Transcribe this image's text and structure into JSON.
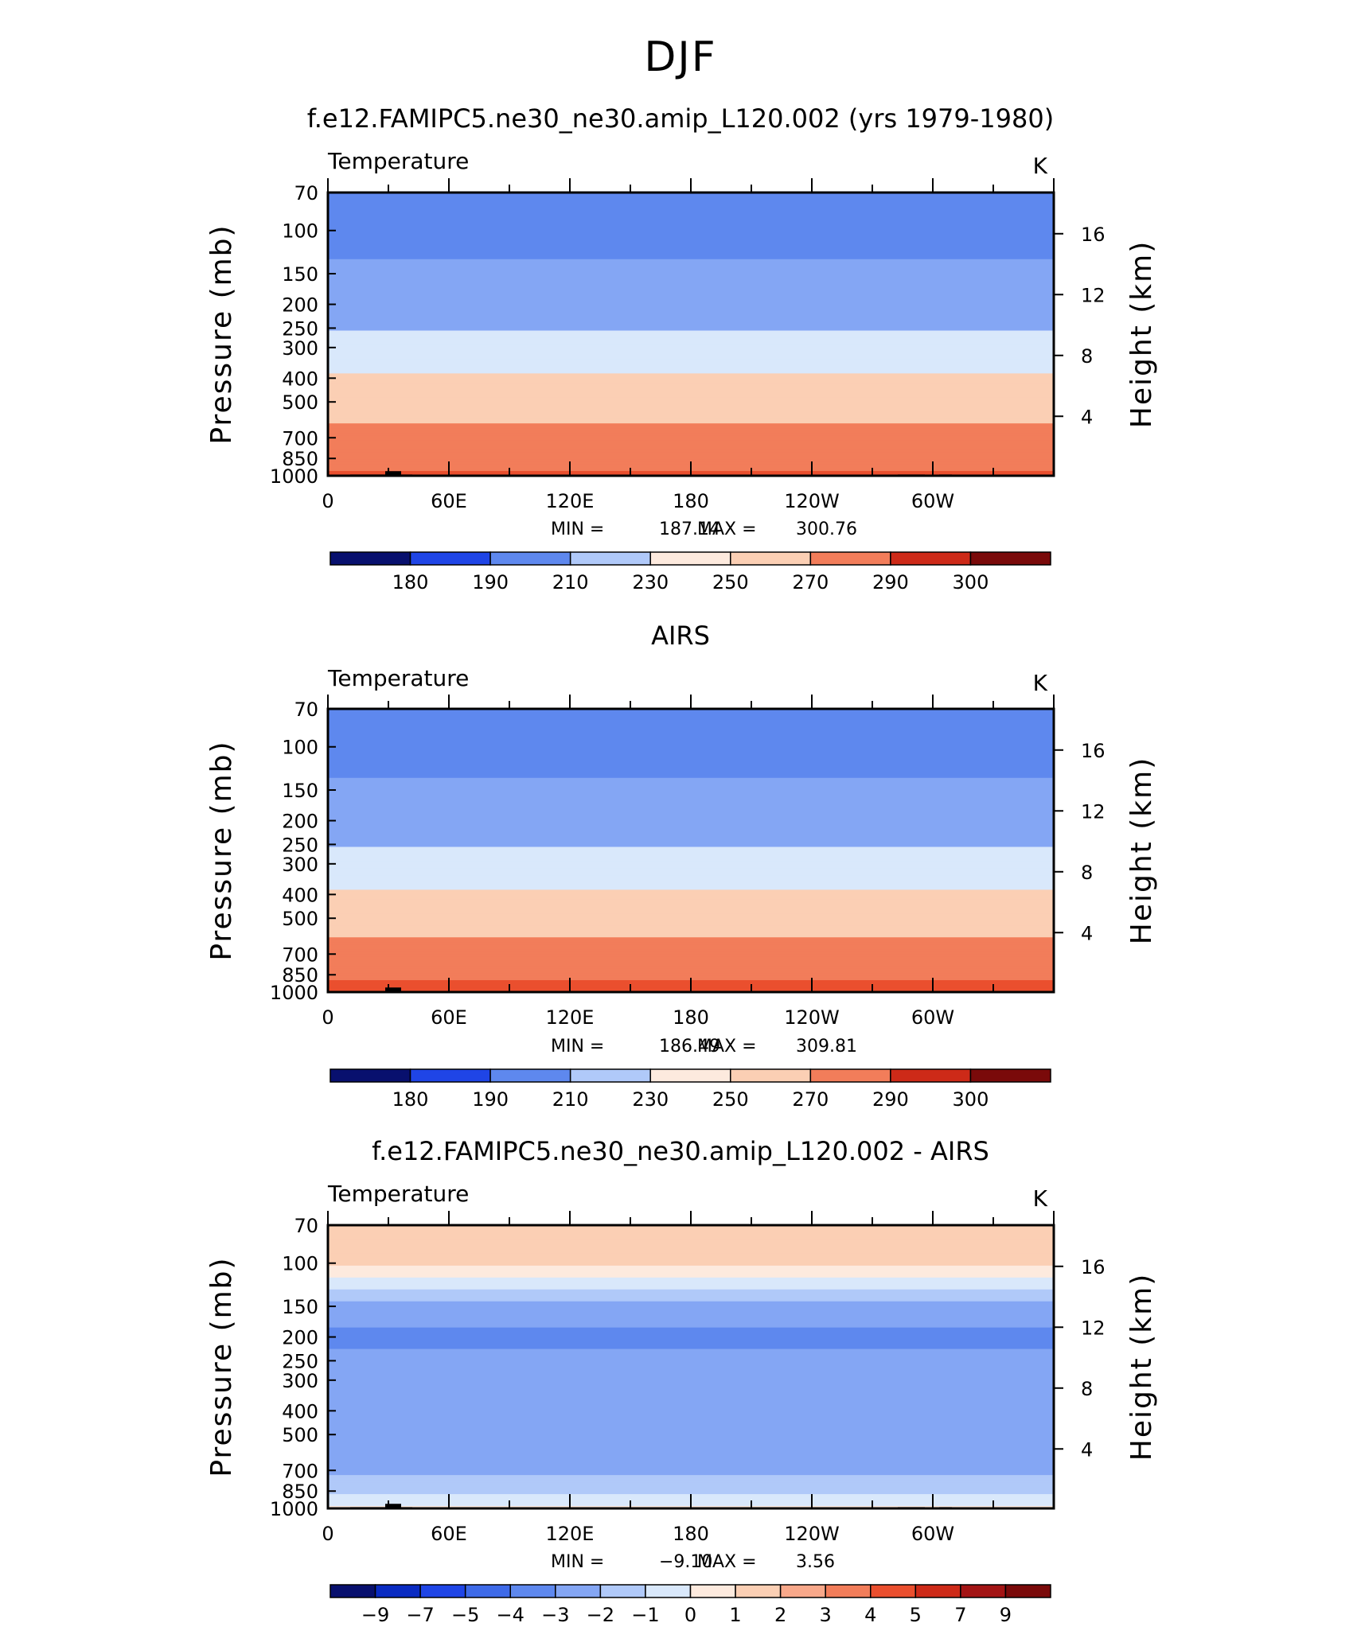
{
  "figure": {
    "title": "DJF"
  },
  "panel_labels": {
    "ylabel_left": "Pressure (mb)",
    "ylabel_right": "Height (km)",
    "variable": "Temperature",
    "units": "K"
  },
  "colors": {
    "colormap": [
      "#08106e",
      "#0a2bc2",
      "#1f45e6",
      "#3e6ae8",
      "#5e88ee",
      "#84a6f4",
      "#b0c9f9",
      "#d9e8fb",
      "#fdeade",
      "#fbcfb4",
      "#f8a88a",
      "#f27d5a",
      "#ea4f2e",
      "#cd2a18",
      "#a31414",
      "#7a0a0a"
    ],
    "terrain": "#000000"
  },
  "chart_data": [
    {
      "type": "contour",
      "title": "f.e12.FAMIPC5.ne30_ne30.amip_L120.002 (yrs 1979-1980)",
      "subtitle_left": "Temperature",
      "subtitle_right": "K",
      "xlabel": "",
      "ylabel": "Pressure (mb)",
      "ylabel_right": "Height (km)",
      "x_ticks": [
        "0",
        "60E",
        "120E",
        "180",
        "120W",
        "60W"
      ],
      "y_ticks": [
        "70",
        "100",
        "150",
        "200",
        "250",
        "300",
        "400",
        "500",
        "700",
        "850",
        "1000"
      ],
      "y_ticks_right": [
        "16",
        "12",
        "8",
        "4"
      ],
      "ylim": [
        1000,
        70
      ],
      "y_scale": "log",
      "stats": {
        "min_label": "MIN =",
        "min": "187.14",
        "max_label": "MAX =",
        "max": "300.76"
      },
      "colorbar": {
        "labels": [
          "180",
          "190",
          "210",
          "230",
          "250",
          "270",
          "290",
          "300"
        ]
      },
      "levels": [
        {
          "p": 70,
          "v": 204
        },
        {
          "p": 100,
          "v": 202
        },
        {
          "p": 130,
          "v": 210
        },
        {
          "p": 170,
          "v": 216
        },
        {
          "p": 230,
          "v": 225
        },
        {
          "p": 300,
          "v": 238
        },
        {
          "p": 400,
          "v": 252
        },
        {
          "p": 500,
          "v": 262
        },
        {
          "p": 700,
          "v": 276
        },
        {
          "p": 850,
          "v": 284
        },
        {
          "p": 1000,
          "v": 292
        }
      ]
    },
    {
      "type": "contour",
      "title": "AIRS",
      "subtitle_left": "Temperature",
      "subtitle_right": "K",
      "xlabel": "",
      "ylabel": "Pressure (mb)",
      "ylabel_right": "Height (km)",
      "x_ticks": [
        "0",
        "60E",
        "120E",
        "180",
        "120W",
        "60W"
      ],
      "y_ticks": [
        "70",
        "100",
        "150",
        "200",
        "250",
        "300",
        "400",
        "500",
        "700",
        "850",
        "1000"
      ],
      "y_ticks_right": [
        "16",
        "12",
        "8",
        "4"
      ],
      "ylim": [
        1000,
        70
      ],
      "y_scale": "log",
      "stats": {
        "min_label": "MIN =",
        "min": "186.49",
        "max_label": "MAX =",
        "max": "309.81"
      },
      "colorbar": {
        "labels": [
          "180",
          "190",
          "210",
          "230",
          "250",
          "270",
          "290",
          "300"
        ]
      },
      "levels": [
        {
          "p": 70,
          "v": 204
        },
        {
          "p": 100,
          "v": 200
        },
        {
          "p": 130,
          "v": 209
        },
        {
          "p": 170,
          "v": 216
        },
        {
          "p": 230,
          "v": 225
        },
        {
          "p": 300,
          "v": 238
        },
        {
          "p": 400,
          "v": 252
        },
        {
          "p": 500,
          "v": 262
        },
        {
          "p": 700,
          "v": 277
        },
        {
          "p": 850,
          "v": 287
        },
        {
          "p": 1000,
          "v": 298
        }
      ]
    },
    {
      "type": "contour",
      "title": "f.e12.FAMIPC5.ne30_ne30.amip_L120.002 - AIRS",
      "subtitle_left": "Temperature",
      "subtitle_right": "K",
      "xlabel": "",
      "ylabel": "Pressure (mb)",
      "ylabel_right": "Height (km)",
      "x_ticks": [
        "0",
        "60E",
        "120E",
        "180",
        "120W",
        "60W"
      ],
      "y_ticks": [
        "70",
        "100",
        "150",
        "200",
        "250",
        "300",
        "400",
        "500",
        "700",
        "850",
        "1000"
      ],
      "y_ticks_right": [
        "16",
        "12",
        "8",
        "4"
      ],
      "ylim": [
        1000,
        70
      ],
      "y_scale": "log",
      "stats": {
        "min_label": "MIN =",
        "min": "−9.10",
        "max_label": "MAX =",
        "max": "3.56"
      },
      "colorbar": {
        "labels": [
          "−9",
          "−7",
          "−5",
          "−4",
          "−3",
          "−2",
          "−1",
          "0",
          "1",
          "2",
          "3",
          "4",
          "5",
          "7",
          "9"
        ]
      },
      "levels": [
        {
          "p": 70,
          "v": 1.5
        },
        {
          "p": 100,
          "v": 1.2
        },
        {
          "p": 120,
          "v": -0.5
        },
        {
          "p": 150,
          "v": -2.5
        },
        {
          "p": 200,
          "v": -3.2
        },
        {
          "p": 250,
          "v": -2.8
        },
        {
          "p": 300,
          "v": -2.5
        },
        {
          "p": 400,
          "v": -2.6
        },
        {
          "p": 500,
          "v": -3.0
        },
        {
          "p": 700,
          "v": -2.3
        },
        {
          "p": 850,
          "v": -1.2
        },
        {
          "p": 1000,
          "v": 0.3
        }
      ]
    }
  ]
}
